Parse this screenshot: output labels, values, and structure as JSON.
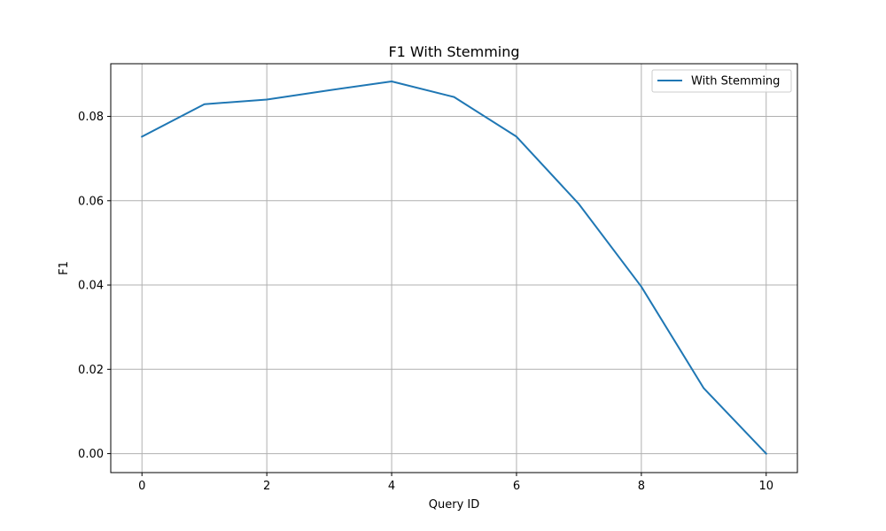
{
  "chart_data": {
    "type": "line",
    "title": "F1 With Stemming",
    "xlabel": "Query ID",
    "ylabel": "F1",
    "xlim": [
      -0.5,
      10.5
    ],
    "ylim": [
      -0.0045,
      0.0925
    ],
    "xticks": [
      0,
      2,
      4,
      6,
      8,
      10
    ],
    "xtick_labels": [
      "0",
      "2",
      "4",
      "6",
      "8",
      "10"
    ],
    "yticks": [
      0.0,
      0.02,
      0.04,
      0.06,
      0.08
    ],
    "ytick_labels": [
      "0.00",
      "0.02",
      "0.04",
      "0.06",
      "0.08"
    ],
    "grid": true,
    "legend_position": "top-right",
    "x": [
      0,
      1,
      2,
      3,
      4,
      5,
      6,
      7,
      8,
      9,
      10
    ],
    "series": [
      {
        "name": "With Stemming",
        "color": "#1f77b4",
        "values": [
          0.0752,
          0.0829,
          0.084,
          0.0862,
          0.0883,
          0.0846,
          0.0752,
          0.0592,
          0.0396,
          0.0155,
          0.0
        ]
      }
    ]
  }
}
